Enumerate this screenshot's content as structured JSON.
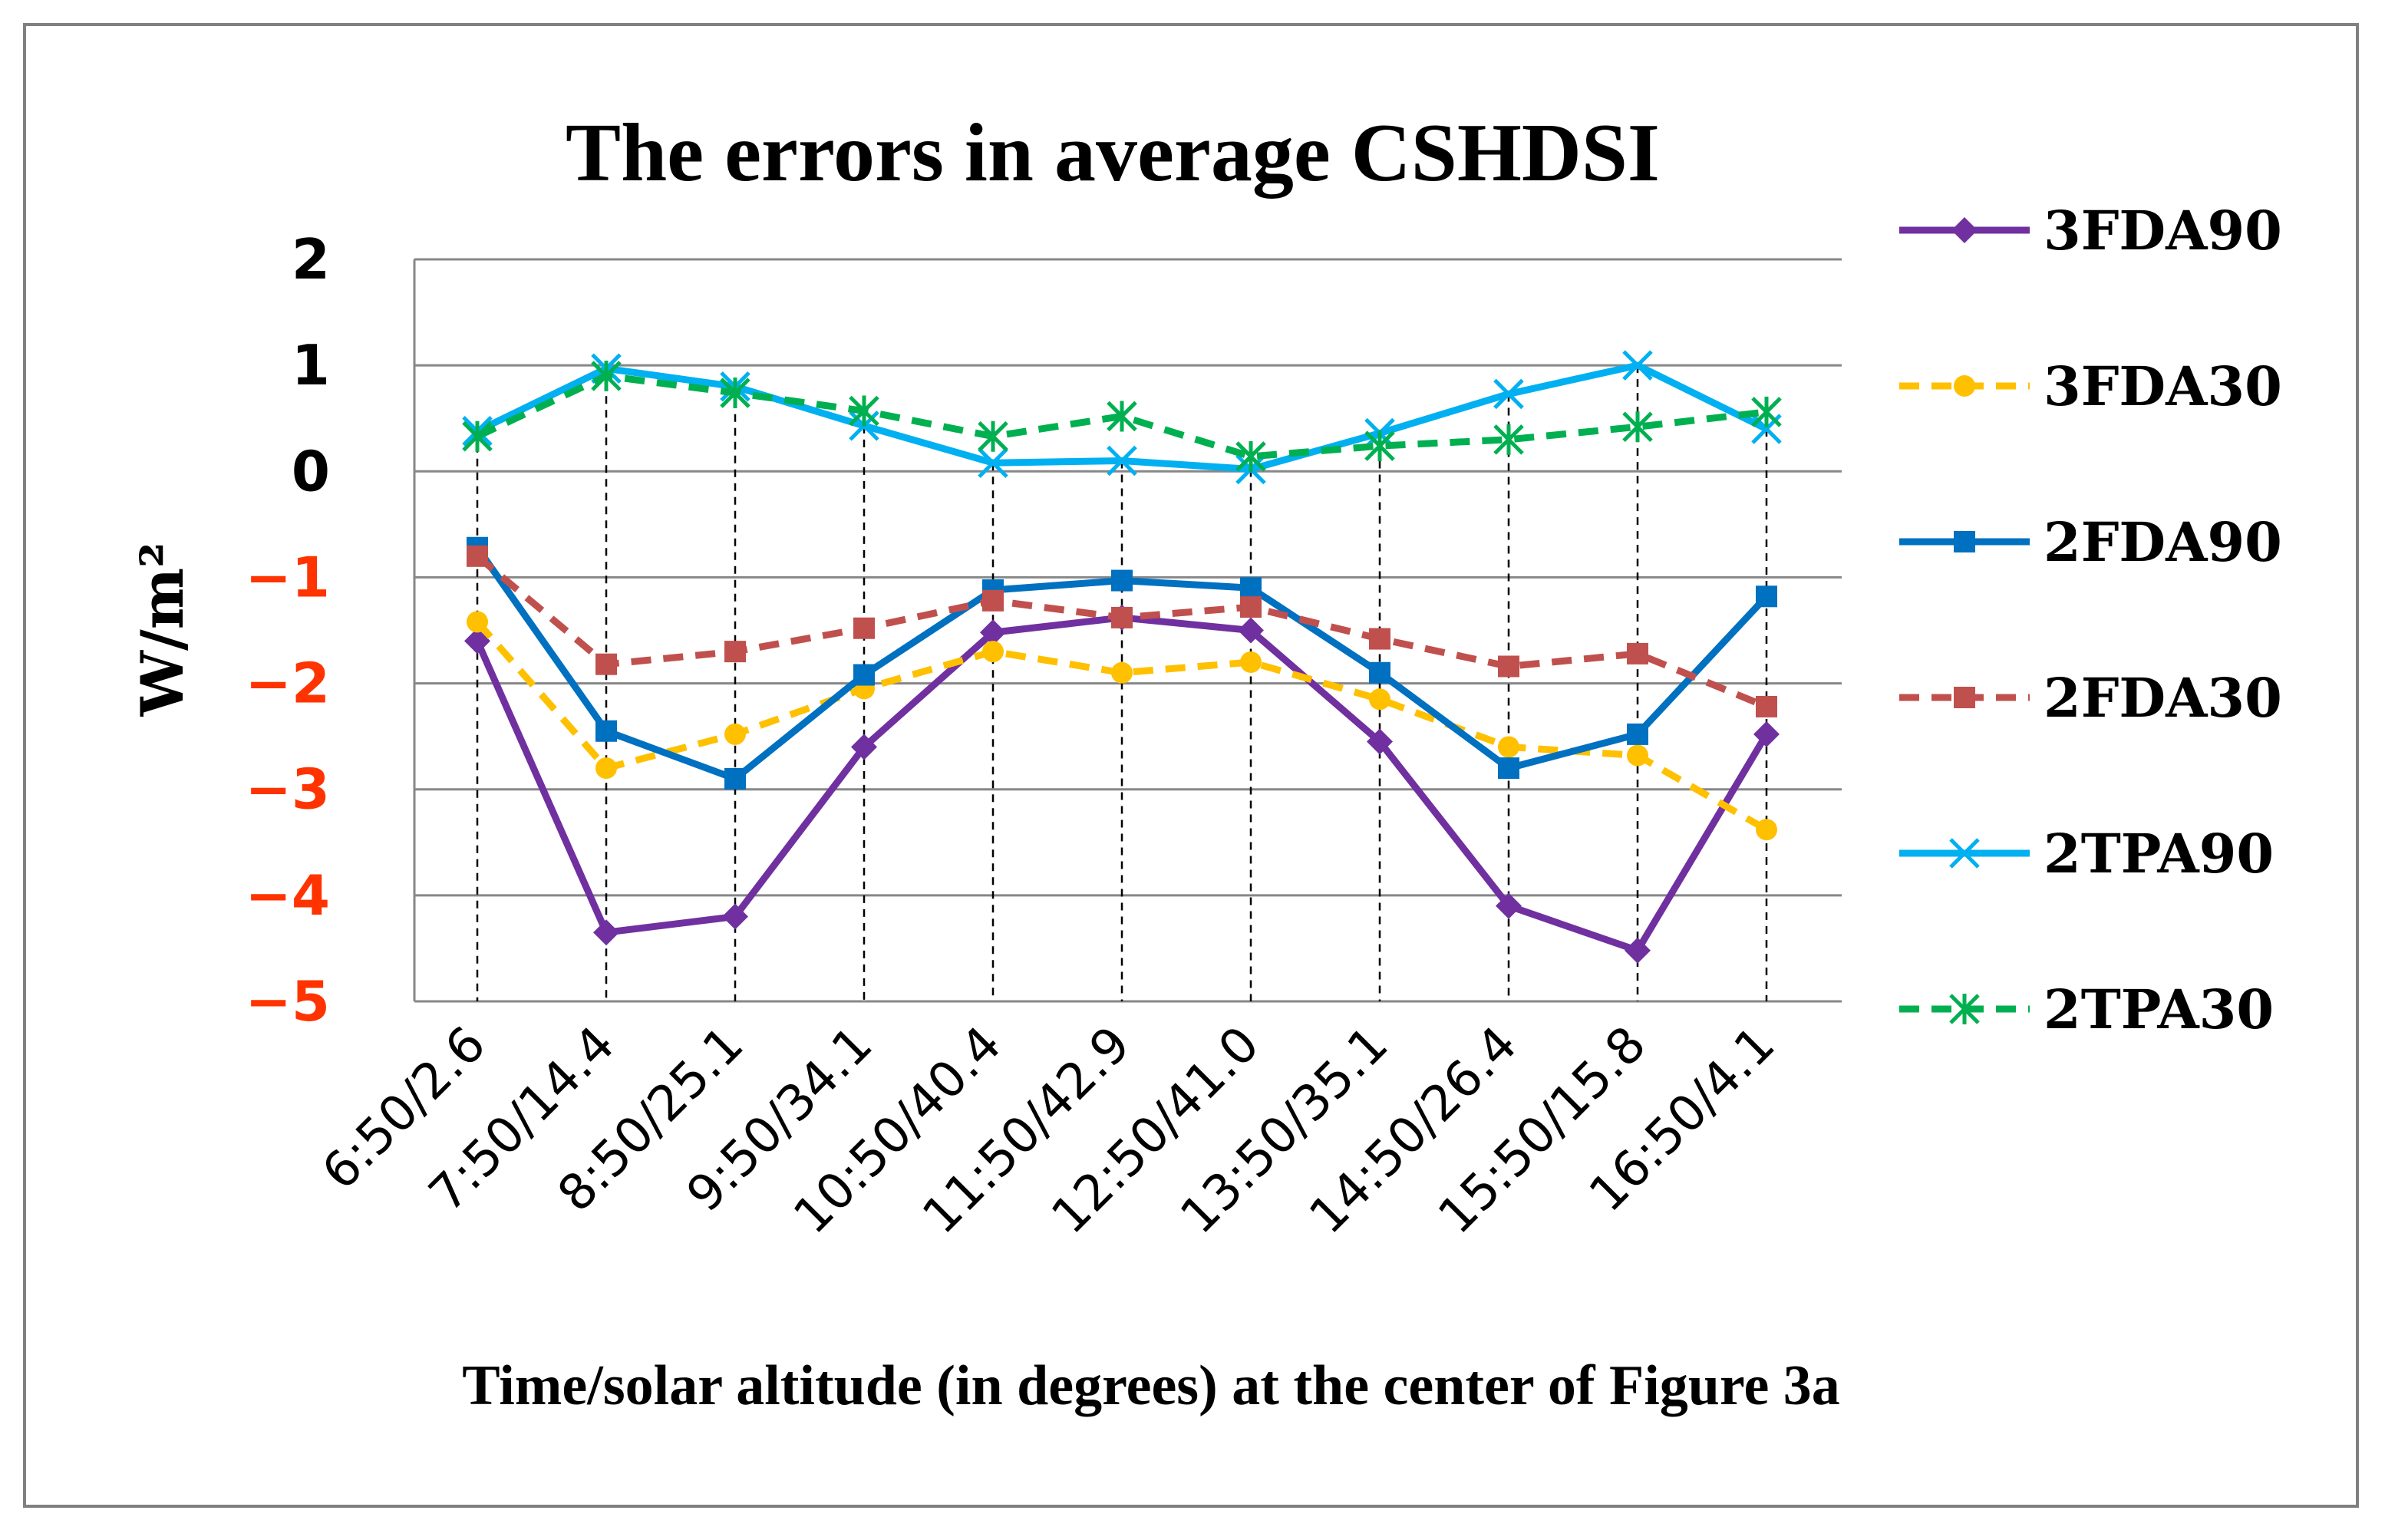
{
  "chart_data": {
    "type": "line",
    "title": "The errors in average CSHDSI",
    "xlabel": "Time/solar altitude  (in degrees)  at the center of Figure 3a",
    "ylabel": "W/m²",
    "ylim": [
      -5,
      2
    ],
    "yticks": [
      2,
      1,
      0,
      -1,
      -2,
      -3,
      -4,
      -5
    ],
    "ytick_colors": {
      "positive": "#000000",
      "negative": "#FF3300"
    },
    "grid": "horizontal",
    "vertical_dashed_lines": true,
    "legend_position": "right",
    "categories": [
      "6:50/2.6",
      "7:50/14.4",
      "8:50/25.1",
      "9:50/34.1",
      "10:50/40.4",
      "11:50/42.9",
      "12:50/41.0",
      "13:50/35.1",
      "14:50/26.4",
      "15:50/15.8",
      "16:50/4.1"
    ],
    "series": [
      {
        "name": "3FDA90",
        "color": "#7030A0",
        "dash": "solid",
        "marker": "diamond",
        "values": [
          -1.6,
          -4.35,
          -4.2,
          -2.6,
          -1.52,
          -1.38,
          -1.5,
          -2.55,
          -4.1,
          -4.52,
          -2.48
        ]
      },
      {
        "name": "3FDA30",
        "color": "#FFC000",
        "dash": "dashed",
        "marker": "circle",
        "values": [
          -1.42,
          -2.8,
          -2.48,
          -2.05,
          -1.7,
          -1.9,
          -1.8,
          -2.15,
          -2.6,
          -2.68,
          -3.38
        ]
      },
      {
        "name": "2FDA90",
        "color": "#0070C0",
        "dash": "solid",
        "marker": "square",
        "values": [
          -0.72,
          -2.45,
          -2.9,
          -1.92,
          -1.12,
          -1.03,
          -1.1,
          -1.9,
          -2.8,
          -2.48,
          -1.18
        ]
      },
      {
        "name": "2FDA30",
        "color": "#C0504D",
        "dash": "dashed",
        "marker": "square",
        "values": [
          -0.8,
          -1.82,
          -1.7,
          -1.48,
          -1.22,
          -1.38,
          -1.28,
          -1.58,
          -1.84,
          -1.72,
          -2.22
        ]
      },
      {
        "name": "2TPA90",
        "color": "#00B0F0",
        "dash": "solid",
        "marker": "x",
        "values": [
          0.38,
          0.97,
          0.8,
          0.43,
          0.08,
          0.1,
          0.02,
          0.36,
          0.73,
          1.0,
          0.4
        ]
      },
      {
        "name": "2TPA30",
        "color": "#00B050",
        "dash": "dashed",
        "marker": "star",
        "values": [
          0.33,
          0.9,
          0.74,
          0.57,
          0.33,
          0.52,
          0.14,
          0.24,
          0.3,
          0.42,
          0.56
        ]
      }
    ]
  }
}
